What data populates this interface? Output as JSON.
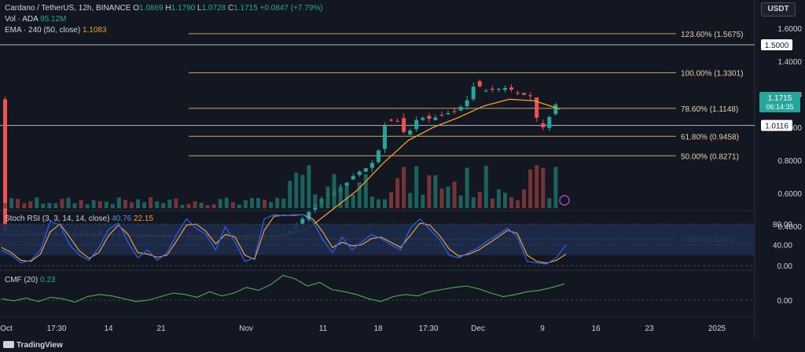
{
  "header": {
    "symbol": "Cardano / TetherUS, 12h, BINANCE",
    "o_label": "O",
    "o_value": "1.0869",
    "h_label": "H",
    "h_value": "1.1790",
    "l_label": "L",
    "l_value": "1.0728",
    "c_label": "C",
    "c_value": "1.1715",
    "change": "+0.0847 (+7.79%)",
    "vol_label": "Vol · ADA",
    "vol_value": "95.12M",
    "ema_label": "EMA · 240 (50, close)",
    "ema_value": "1.1083",
    "currency": "USDT"
  },
  "chart_data": {
    "type": "candlestick",
    "price_axis": {
      "ticks": [
        0.4,
        0.6,
        0.8,
        1.0,
        1.2,
        1.4,
        1.6
      ],
      "tick_labels": [
        "0.4000",
        "0.6000",
        "0.8000",
        "1.0000",
        "1.2000",
        "1.4000",
        "1.6000"
      ]
    },
    "fib_levels": [
      {
        "label": "123.60% (1.5675)",
        "value": 1.5675
      },
      {
        "label": "100.00% (1.3301)",
        "value": 1.3301
      },
      {
        "label": "78.60% (1.1148)",
        "value": 1.1148
      },
      {
        "label": "61.80% (0.9458)",
        "value": 0.9458
      },
      {
        "label": "50.00% (0.8271)",
        "value": 0.8271
      },
      {
        "label": "0.00% (0.3241)",
        "value": 0.3241
      }
    ],
    "horizontal_lines": [
      {
        "value": 1.5,
        "label": "1.5000"
      },
      {
        "value": 1.0116,
        "label": "1.0116"
      }
    ],
    "last_price": {
      "value": 1.1715,
      "label": "1.1715",
      "countdown": "06:14:35"
    },
    "x_labels": [
      "Oct",
      "17:30",
      "14",
      "21",
      "Nov",
      "11",
      "18",
      "17:30",
      "Dec",
      "9",
      "16",
      "23",
      "2025"
    ],
    "price_path": [
      [
        0,
        0.37
      ],
      [
        20,
        0.35
      ],
      [
        40,
        0.34
      ],
      [
        45,
        0.35
      ],
      [
        48,
        0.46
      ],
      [
        50,
        0.55
      ],
      [
        52,
        0.6
      ],
      [
        54,
        0.64
      ],
      [
        56,
        0.72
      ],
      [
        58,
        0.76
      ],
      [
        59,
        0.8
      ],
      [
        60,
        0.9
      ],
      [
        61,
        1.08
      ],
      [
        62,
        1.02
      ],
      [
        63,
        1.05
      ],
      [
        64,
        0.92
      ],
      [
        65,
        1.02
      ],
      [
        66,
        1.06
      ],
      [
        68,
        1.05
      ],
      [
        70,
        1.08
      ],
      [
        72,
        1.1
      ],
      [
        74,
        1.18
      ],
      [
        75,
        1.29
      ],
      [
        76,
        1.22
      ],
      [
        78,
        1.23
      ],
      [
        80,
        1.24
      ],
      [
        82,
        1.2
      ],
      [
        84,
        1.19
      ],
      [
        85,
        0.97
      ],
      [
        86,
        1.02
      ],
      [
        87,
        1.09
      ],
      [
        88,
        1.17
      ]
    ],
    "ema_path": [
      [
        0,
        0.35
      ],
      [
        30,
        0.34
      ],
      [
        44,
        0.34
      ],
      [
        48,
        0.38
      ],
      [
        52,
        0.5
      ],
      [
        56,
        0.62
      ],
      [
        60,
        0.78
      ],
      [
        64,
        0.92
      ],
      [
        68,
        1.0
      ],
      [
        72,
        1.06
      ],
      [
        76,
        1.13
      ],
      [
        80,
        1.17
      ],
      [
        84,
        1.16
      ],
      [
        88,
        1.11
      ]
    ],
    "volume_bars": 88,
    "stoch_rsi": {
      "title": "Stoch RSI (3, 3, 14, 14, close)",
      "k_value": "40.76",
      "d_value": "22.15",
      "ticks": [
        0,
        40,
        80
      ],
      "tick_labels": [
        "0.00",
        "40.00",
        "80.00"
      ],
      "band": [
        20,
        80
      ],
      "k": [
        30,
        20,
        5,
        10,
        30,
        85,
        78,
        40,
        20,
        10,
        35,
        70,
        82,
        45,
        15,
        30,
        10,
        25,
        60,
        90,
        72,
        60,
        30,
        75,
        45,
        8,
        15,
        90,
        98,
        96,
        98,
        98,
        85,
        50,
        25,
        55,
        30,
        45,
        60,
        52,
        40,
        30,
        72,
        90,
        70,
        50,
        20,
        15,
        25,
        35,
        48,
        60,
        72,
        55,
        8,
        5,
        3,
        15,
        40
      ],
      "d": [
        35,
        25,
        10,
        8,
        22,
        65,
        80,
        55,
        28,
        14,
        25,
        58,
        78,
        60,
        25,
        22,
        16,
        20,
        48,
        78,
        80,
        66,
        42,
        60,
        55,
        20,
        12,
        68,
        95,
        97,
        97,
        98,
        90,
        65,
        35,
        45,
        38,
        40,
        52,
        55,
        45,
        35,
        58,
        82,
        78,
        58,
        32,
        18,
        22,
        30,
        42,
        55,
        68,
        62,
        20,
        8,
        5,
        10,
        22
      ]
    },
    "cmf": {
      "title": "CMF (20)",
      "value": "0.23",
      "ticks": [
        0
      ],
      "tick_labels": [
        "0.00"
      ],
      "line": [
        0.02,
        -0.01,
        0.03,
        -0.02,
        0.04,
        0.02,
        -0.03,
        0.05,
        0.08,
        0.06,
        0.02,
        -0.02,
        0.0,
        0.05,
        0.1,
        0.08,
        0.04,
        0.12,
        0.06,
        0.1,
        0.18,
        0.14,
        0.22,
        0.35,
        0.3,
        0.2,
        0.25,
        0.15,
        0.12,
        0.08,
        0.02,
        -0.02,
        0.05,
        0.08,
        0.06,
        0.12,
        0.15,
        0.18,
        0.2,
        0.16,
        0.1,
        0.05,
        0.08,
        0.12,
        0.14,
        0.18,
        0.23
      ]
    }
  },
  "colors": {
    "up": "#26a69a",
    "down": "#ef5350",
    "ema": "#f0a030",
    "fib": "#c9a35a",
    "blue": "#2962ff",
    "orange": "#f0a030",
    "cmf": "#4caf50",
    "grid": "#2a2e39",
    "axis_text": "#d1d4dc",
    "bg": "#131722"
  },
  "footer": {
    "brand": "TradingView"
  }
}
